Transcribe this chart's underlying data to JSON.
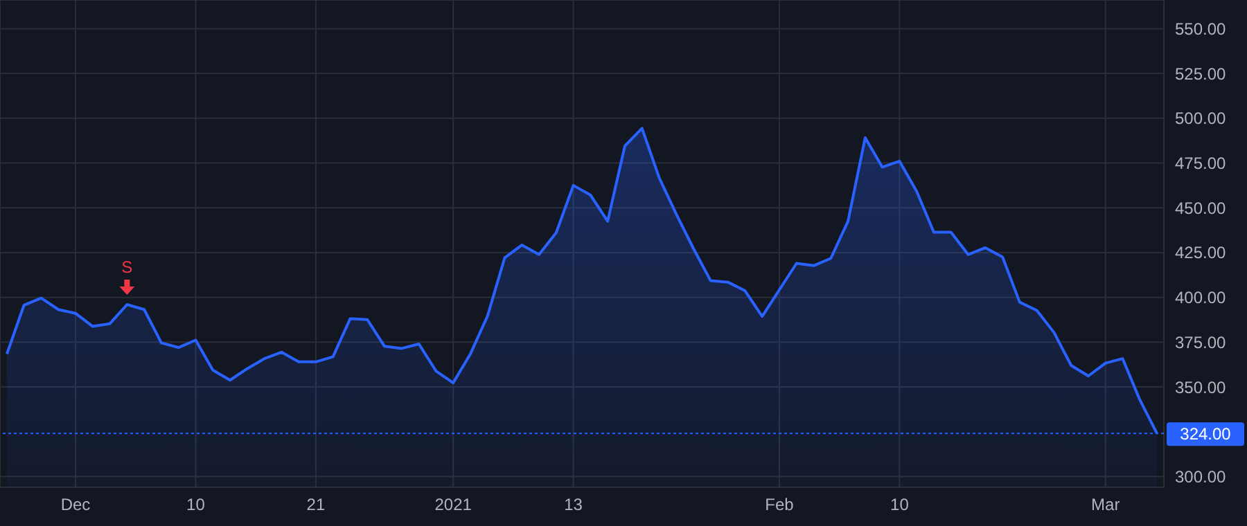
{
  "chart_data": {
    "type": "area",
    "categories": [
      null,
      null,
      null,
      null,
      "Dec",
      null,
      null,
      null,
      null,
      null,
      null,
      "10",
      null,
      null,
      null,
      null,
      null,
      null,
      "21",
      null,
      null,
      null,
      null,
      null,
      null,
      null,
      "2021",
      null,
      null,
      null,
      null,
      null,
      null,
      "13",
      null,
      null,
      null,
      null,
      null,
      null,
      null,
      null,
      null,
      null,
      null,
      "Feb",
      null,
      null,
      null,
      null,
      null,
      null,
      "10",
      null,
      null,
      null,
      null,
      null,
      null,
      null,
      null,
      null,
      null,
      null,
      "Mar",
      null,
      null,
      null
    ],
    "series": [
      {
        "color": "#2962ff",
        "values": [
          368.4,
          395.7,
          399.6,
          393.2,
          391.1,
          383.8,
          385.3,
          396,
          393.2,
          374.6,
          372,
          376.1,
          359.4,
          353.8,
          360.2,
          365.8,
          369.4,
          364,
          364,
          366.9,
          388.1,
          387.6,
          372.7,
          371.5,
          374,
          358.9,
          352.3,
          368.4,
          389.6,
          422.1,
          429.2,
          423.9,
          436.1,
          462.5,
          457.1,
          442.5,
          484.5,
          494.4,
          466.8,
          446.4,
          427.2,
          409.3,
          408.5,
          403.7,
          389.4,
          404.2,
          419,
          417.7,
          421.8,
          442.5,
          489.1,
          472.7,
          476,
          459.2,
          436.4,
          436.4,
          423.9,
          427.7,
          422.6,
          397.3,
          392.7,
          380.4,
          362,
          356.1,
          363.3,
          365.8,
          342.8,
          324
        ]
      }
    ],
    "ylim": [
      294,
      566
    ],
    "yticks": [
      {
        "value": 300,
        "label": "300.00"
      },
      {
        "value": 350,
        "label": "350.00"
      },
      {
        "value": 375,
        "label": "375.00"
      },
      {
        "value": 400,
        "label": "400.00"
      },
      {
        "value": 425,
        "label": "425.00"
      },
      {
        "value": 450,
        "label": "450.00"
      },
      {
        "value": 475,
        "label": "475.00"
      },
      {
        "value": 500,
        "label": "500.00"
      },
      {
        "value": 525,
        "label": "525.00"
      },
      {
        "value": 550,
        "label": "550.00"
      }
    ],
    "grid": true,
    "ref_lines": [
      {
        "axis": "y",
        "value": 324,
        "label": "324.00",
        "color": "#2962ff",
        "line_style": "dotted"
      }
    ],
    "annotations": [
      {
        "text": "S",
        "y": 396
      }
    ]
  }
}
